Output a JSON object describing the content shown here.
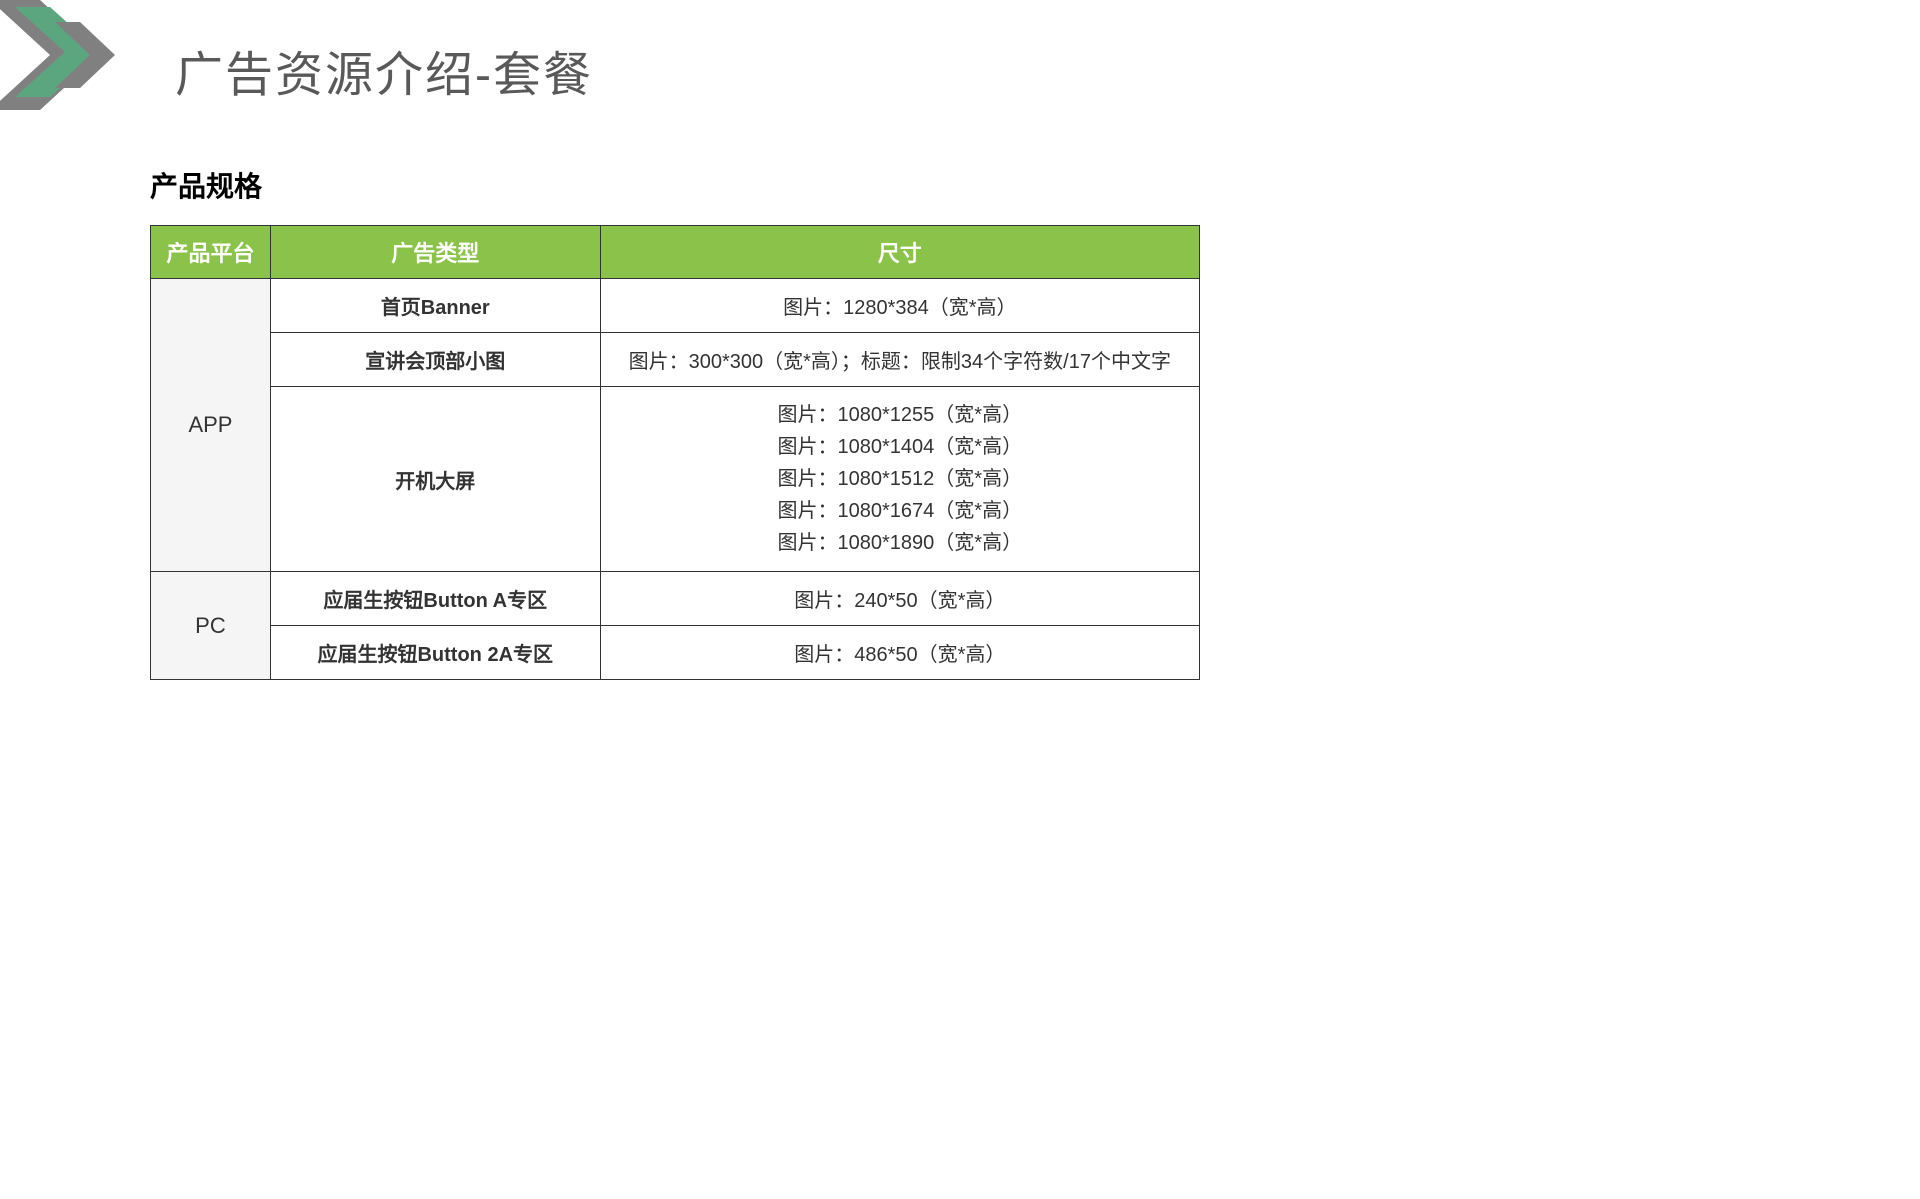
{
  "page": {
    "title": "广告资源介绍-套餐",
    "subtitle": "产品规格"
  },
  "decoration": {
    "chevron_color_green": "#5ba67f",
    "chevron_color_gray": "#808080"
  },
  "table": {
    "header_bg": "#8bc34a",
    "header_color": "#ffffff",
    "border_color": "#333333",
    "platform_bg": "#f5f5f5",
    "columns": {
      "platform": "产品平台",
      "ad_type": "广告类型",
      "size": "尺寸"
    },
    "col_widths": {
      "platform": 120,
      "ad_type": 330,
      "size": 600
    },
    "groups": [
      {
        "platform": "APP",
        "rows": [
          {
            "ad_type": "首页Banner",
            "size": "图片：1280*384（宽*高）"
          },
          {
            "ad_type": "宣讲会顶部小图",
            "size": "图片：300*300（宽*高）；标题：限制34个字符数/17个中文字"
          },
          {
            "ad_type": "开机大屏",
            "size_lines": [
              "图片：1080*1255（宽*高）",
              "图片：1080*1404（宽*高）",
              "图片：1080*1512（宽*高）",
              "图片：1080*1674（宽*高）",
              "图片：1080*1890（宽*高）"
            ]
          }
        ]
      },
      {
        "platform": "PC",
        "rows": [
          {
            "ad_type": "应届生按钮Button A专区",
            "size": "图片：240*50（宽*高）"
          },
          {
            "ad_type": "应届生按钮Button 2A专区",
            "size": "图片：486*50（宽*高）"
          }
        ]
      }
    ]
  },
  "typography": {
    "title_fontsize": 48,
    "title_color": "#595959",
    "subtitle_fontsize": 28,
    "header_fontsize": 22,
    "cell_fontsize": 20
  }
}
